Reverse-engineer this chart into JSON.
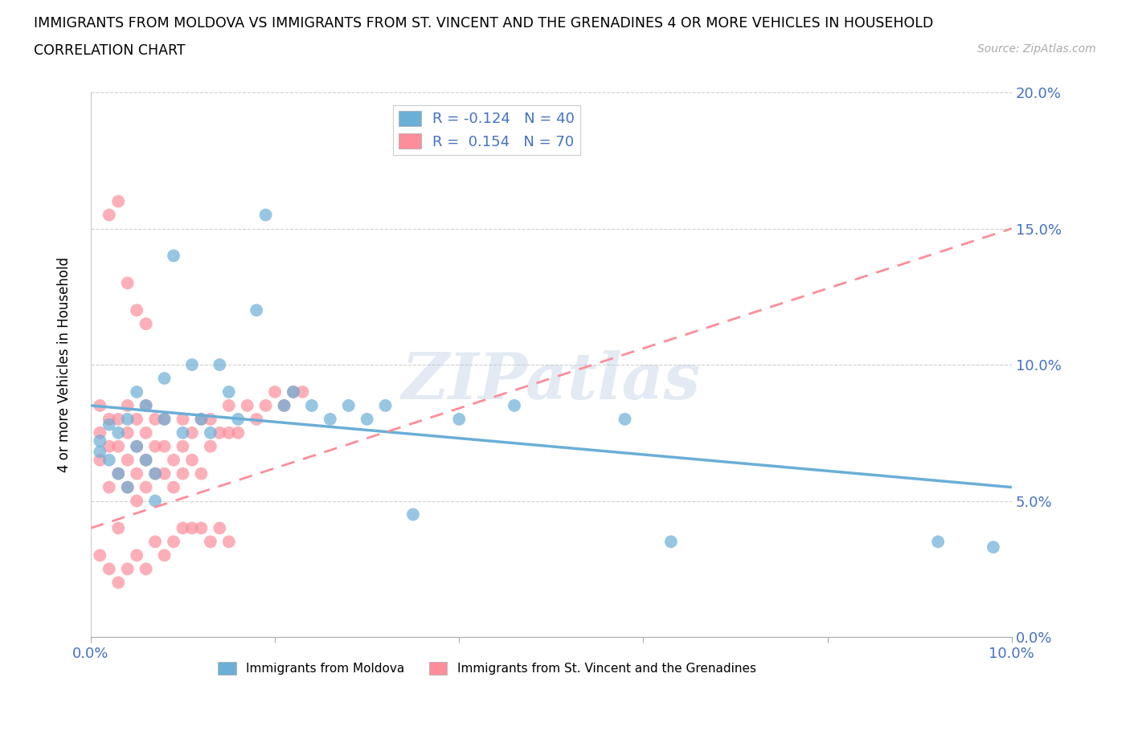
{
  "title_line1": "IMMIGRANTS FROM MOLDOVA VS IMMIGRANTS FROM ST. VINCENT AND THE GRENADINES 4 OR MORE VEHICLES IN HOUSEHOLD",
  "title_line2": "CORRELATION CHART",
  "source_text": "Source: ZipAtlas.com",
  "ylabel": "4 or more Vehicles in Household",
  "moldova_R": -0.124,
  "moldova_N": 40,
  "stvincent_R": 0.154,
  "stvincent_N": 70,
  "color_moldova": "#6baed6",
  "color_stvincent": "#fc8d9a",
  "xlim": [
    0.0,
    0.1
  ],
  "ylim": [
    0.0,
    0.2
  ],
  "xticks": [
    0.0,
    0.02,
    0.04,
    0.06,
    0.08,
    0.1
  ],
  "yticks": [
    0.0,
    0.05,
    0.1,
    0.15,
    0.2
  ],
  "xtick_labels": [
    "0.0%",
    "",
    "",
    "",
    "",
    "10.0%"
  ],
  "ytick_labels_right": [
    "0.0%",
    "5.0%",
    "10.0%",
    "15.0%",
    "20.0%"
  ],
  "watermark": "ZIPatlas",
  "moldova_x": [
    0.001,
    0.001,
    0.002,
    0.002,
    0.003,
    0.003,
    0.004,
    0.004,
    0.005,
    0.005,
    0.006,
    0.006,
    0.007,
    0.007,
    0.008,
    0.008,
    0.009,
    0.01,
    0.011,
    0.012,
    0.013,
    0.014,
    0.015,
    0.016,
    0.018,
    0.019,
    0.021,
    0.022,
    0.024,
    0.026,
    0.028,
    0.03,
    0.032,
    0.035,
    0.04,
    0.046,
    0.058,
    0.063,
    0.092,
    0.098
  ],
  "moldova_y": [
    0.072,
    0.068,
    0.078,
    0.065,
    0.06,
    0.075,
    0.055,
    0.08,
    0.07,
    0.09,
    0.065,
    0.085,
    0.05,
    0.06,
    0.08,
    0.095,
    0.14,
    0.075,
    0.1,
    0.08,
    0.075,
    0.1,
    0.09,
    0.08,
    0.12,
    0.155,
    0.085,
    0.09,
    0.085,
    0.08,
    0.085,
    0.08,
    0.085,
    0.045,
    0.08,
    0.085,
    0.08,
    0.035,
    0.035,
    0.033
  ],
  "stvincent_x": [
    0.001,
    0.001,
    0.001,
    0.002,
    0.002,
    0.002,
    0.003,
    0.003,
    0.003,
    0.003,
    0.004,
    0.004,
    0.004,
    0.004,
    0.005,
    0.005,
    0.005,
    0.005,
    0.006,
    0.006,
    0.006,
    0.006,
    0.007,
    0.007,
    0.007,
    0.008,
    0.008,
    0.008,
    0.009,
    0.009,
    0.01,
    0.01,
    0.01,
    0.011,
    0.011,
    0.012,
    0.012,
    0.013,
    0.013,
    0.014,
    0.015,
    0.015,
    0.016,
    0.017,
    0.018,
    0.019,
    0.02,
    0.021,
    0.022,
    0.023,
    0.001,
    0.002,
    0.003,
    0.004,
    0.005,
    0.006,
    0.007,
    0.008,
    0.009,
    0.01,
    0.011,
    0.012,
    0.013,
    0.014,
    0.015,
    0.002,
    0.003,
    0.004,
    0.005,
    0.006
  ],
  "stvincent_y": [
    0.065,
    0.075,
    0.085,
    0.055,
    0.07,
    0.08,
    0.04,
    0.06,
    0.07,
    0.08,
    0.055,
    0.065,
    0.075,
    0.085,
    0.05,
    0.06,
    0.07,
    0.08,
    0.055,
    0.065,
    0.075,
    0.085,
    0.06,
    0.07,
    0.08,
    0.06,
    0.07,
    0.08,
    0.055,
    0.065,
    0.06,
    0.07,
    0.08,
    0.065,
    0.075,
    0.06,
    0.08,
    0.07,
    0.08,
    0.075,
    0.075,
    0.085,
    0.075,
    0.085,
    0.08,
    0.085,
    0.09,
    0.085,
    0.09,
    0.09,
    0.03,
    0.025,
    0.02,
    0.025,
    0.03,
    0.025,
    0.035,
    0.03,
    0.035,
    0.04,
    0.04,
    0.04,
    0.035,
    0.04,
    0.035,
    0.155,
    0.16,
    0.13,
    0.12,
    0.115
  ],
  "mol_line_x": [
    0.0,
    0.1
  ],
  "mol_line_y": [
    0.085,
    0.055
  ],
  "stv_line_x": [
    0.0,
    0.1
  ],
  "stv_line_y": [
    0.04,
    0.15
  ]
}
